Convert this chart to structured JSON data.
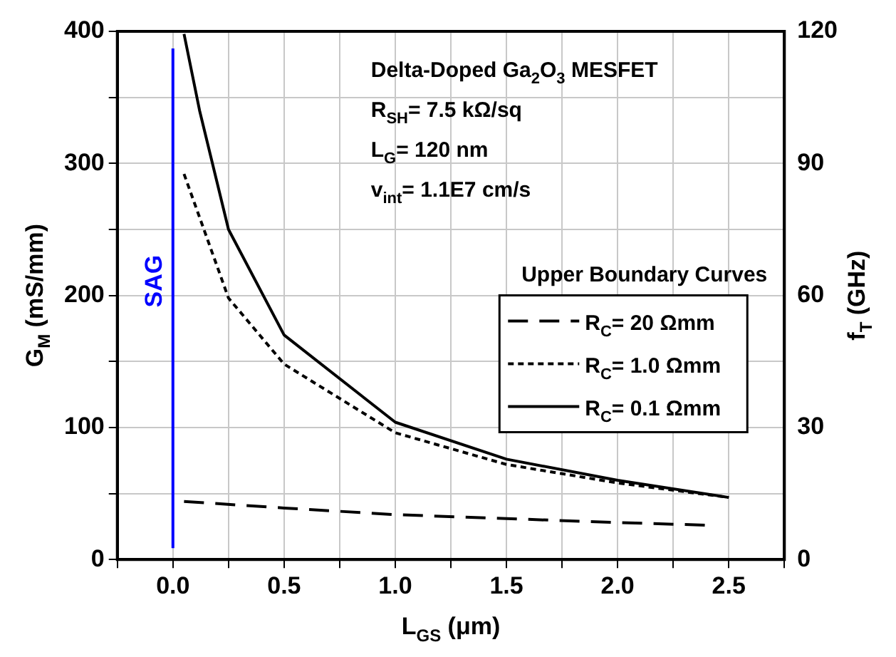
{
  "chart_data": {
    "type": "line",
    "xlabel": "L$_{GS}$ (μm)",
    "ylabel": "G$_{M}$ (mS/mm)",
    "y2label": "f$_{T}$ (GHz)",
    "legend_title": "Upper Boundary Curves",
    "annotations": [
      "Delta-Doped Ga$_{2}$O$_{3}$ MESFET",
      "R$_{SH}$= 7.5 kΩ/sq",
      "L$_{G}$= 120 nm",
      "v$_{int}$= 1.1E7 cm/s"
    ],
    "series": [
      {
        "name": "R$_{C}$= 20 Ωmm",
        "color": "#000000",
        "line_style": "dashed",
        "x": [
          0.05,
          0.5,
          1.0,
          1.5,
          2.0,
          2.4
        ],
        "values": [
          44,
          39,
          34,
          31,
          28,
          26
        ]
      },
      {
        "name": "R$_{C}$= 1.0 Ωmm",
        "color": "#000000",
        "line_style": "dotted",
        "x": [
          0.05,
          0.25,
          0.5,
          1.0,
          1.5,
          2.0,
          2.5
        ],
        "values": [
          292,
          198,
          148,
          96,
          72,
          58,
          47
        ]
      },
      {
        "name": "R$_{C}$= 0.1 Ωmm",
        "color": "#000000",
        "line_style": "solid",
        "x": [
          0.05,
          0.12,
          0.25,
          0.5,
          1.0,
          1.5,
          2.0,
          2.5
        ],
        "values": [
          398,
          340,
          250,
          170,
          104,
          76,
          60,
          47
        ]
      }
    ],
    "ref_lines": [
      {
        "axis": "x",
        "value": 0,
        "label": "SAG",
        "color": "#0000ff"
      }
    ],
    "xlim": [
      -0.25,
      2.75
    ],
    "xticks": [
      {
        "value": -0.25,
        "label": null
      },
      {
        "value": 0,
        "label": "0.0"
      },
      {
        "value": 0.25,
        "label": null
      },
      0.5,
      {
        "value": 0.75,
        "label": null
      },
      {
        "value": 1,
        "label": "1.0"
      },
      {
        "value": 1.25,
        "label": null
      },
      1.5,
      {
        "value": 1.75,
        "label": null
      },
      {
        "value": 2,
        "label": "2.0"
      },
      {
        "value": 2.25,
        "label": null
      },
      2.5,
      {
        "value": 2.75,
        "label": null
      }
    ],
    "ylim": [
      0,
      400
    ],
    "yticks": [
      0,
      {
        "value": 50,
        "label": null
      },
      100,
      {
        "value": 150,
        "label": null
      },
      200,
      {
        "value": 250,
        "label": null
      },
      300,
      {
        "value": 350,
        "label": null
      },
      400
    ],
    "y2lim": [
      0,
      120
    ],
    "y2ticks": [
      0,
      30,
      60,
      90,
      120
    ],
    "grid": true,
    "legend": "right",
    "marker": "none"
  }
}
